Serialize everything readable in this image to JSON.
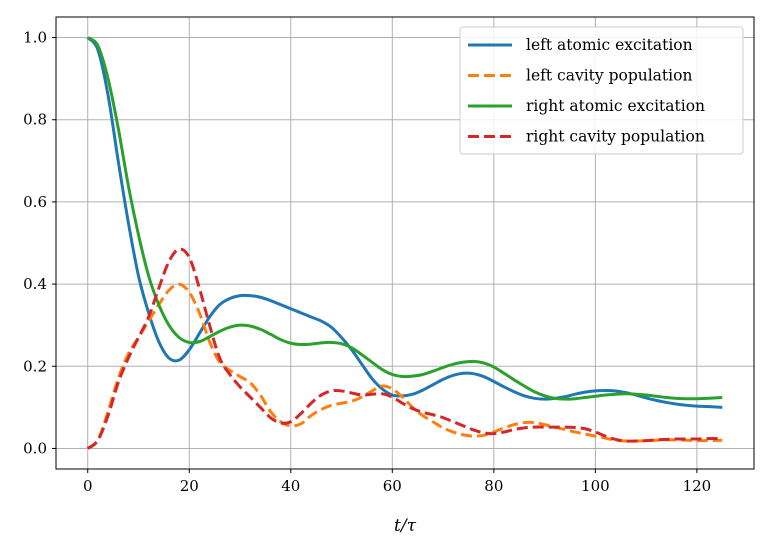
{
  "chart_data": {
    "type": "line",
    "xlabel": "t/τ",
    "ylabel": "",
    "xlim": [
      -6.25,
      131.25
    ],
    "ylim": [
      -0.05,
      1.05
    ],
    "xticks": [
      0,
      20,
      40,
      60,
      80,
      100,
      120
    ],
    "yticks": [
      0.0,
      0.2,
      0.4,
      0.6,
      0.8,
      1.0
    ],
    "xtick_labels": [
      "0",
      "20",
      "40",
      "60",
      "80",
      "100",
      "120"
    ],
    "ytick_labels": [
      "0.0",
      "0.2",
      "0.4",
      "0.6",
      "0.8",
      "1.0"
    ],
    "grid": true,
    "legend_position": "upper right",
    "series": [
      {
        "name": "left atomic excitation",
        "color": "#1f77b4",
        "dash": "solid",
        "x": [
          0,
          2,
          4,
          6,
          8,
          10,
          12,
          14,
          16,
          18,
          20,
          22,
          24,
          26,
          28,
          30,
          32,
          34,
          36,
          38,
          40,
          42,
          44,
          46,
          48,
          50,
          52,
          54,
          56,
          58,
          60,
          62,
          64,
          66,
          68,
          70,
          72,
          74,
          76,
          78,
          80,
          82,
          84,
          86,
          88,
          90,
          92,
          94,
          96,
          98,
          100,
          102,
          104,
          106,
          108,
          110,
          112,
          114,
          116,
          118,
          120,
          122,
          125
        ],
        "y": [
          1.0,
          0.97,
          0.86,
          0.7,
          0.55,
          0.42,
          0.33,
          0.26,
          0.22,
          0.215,
          0.24,
          0.28,
          0.32,
          0.35,
          0.365,
          0.372,
          0.372,
          0.368,
          0.36,
          0.35,
          0.34,
          0.33,
          0.32,
          0.31,
          0.295,
          0.27,
          0.24,
          0.205,
          0.17,
          0.145,
          0.13,
          0.128,
          0.132,
          0.142,
          0.155,
          0.168,
          0.178,
          0.183,
          0.182,
          0.175,
          0.163,
          0.15,
          0.138,
          0.128,
          0.122,
          0.12,
          0.122,
          0.126,
          0.132,
          0.137,
          0.14,
          0.141,
          0.14,
          0.136,
          0.13,
          0.123,
          0.117,
          0.112,
          0.108,
          0.105,
          0.103,
          0.102,
          0.1
        ]
      },
      {
        "name": "left cavity population",
        "color": "#ff7f0e",
        "dash": "dashed",
        "x": [
          0,
          2,
          4,
          6,
          8,
          10,
          12,
          14,
          16,
          18,
          20,
          22,
          24,
          26,
          28,
          30,
          32,
          34,
          36,
          38,
          40,
          42,
          44,
          46,
          48,
          50,
          52,
          54,
          56,
          58,
          60,
          62,
          64,
          66,
          68,
          70,
          72,
          74,
          76,
          78,
          80,
          82,
          84,
          86,
          88,
          90,
          92,
          94,
          96,
          98,
          100,
          102,
          104,
          106,
          108,
          110,
          112,
          114,
          116,
          118,
          120,
          122,
          125
        ],
        "y": [
          0.0,
          0.02,
          0.09,
          0.17,
          0.23,
          0.27,
          0.31,
          0.35,
          0.385,
          0.4,
          0.38,
          0.33,
          0.26,
          0.21,
          0.19,
          0.175,
          0.16,
          0.13,
          0.09,
          0.065,
          0.055,
          0.06,
          0.08,
          0.095,
          0.105,
          0.11,
          0.115,
          0.125,
          0.14,
          0.152,
          0.145,
          0.125,
          0.1,
          0.08,
          0.065,
          0.05,
          0.04,
          0.033,
          0.03,
          0.032,
          0.04,
          0.05,
          0.058,
          0.063,
          0.063,
          0.058,
          0.052,
          0.046,
          0.04,
          0.035,
          0.03,
          0.025,
          0.02,
          0.018,
          0.018,
          0.019,
          0.02,
          0.021,
          0.021,
          0.02,
          0.019,
          0.019,
          0.02
        ]
      },
      {
        "name": "right atomic excitation",
        "color": "#2ca02c",
        "dash": "solid",
        "x": [
          0,
          2,
          4,
          6,
          8,
          10,
          12,
          14,
          16,
          18,
          20,
          22,
          24,
          26,
          28,
          30,
          32,
          34,
          36,
          38,
          40,
          42,
          44,
          46,
          48,
          50,
          52,
          54,
          56,
          58,
          60,
          62,
          64,
          66,
          68,
          70,
          72,
          74,
          76,
          78,
          80,
          82,
          84,
          86,
          88,
          90,
          92,
          94,
          96,
          98,
          100,
          102,
          104,
          106,
          108,
          110,
          112,
          114,
          116,
          118,
          120,
          122,
          125
        ],
        "y": [
          1.0,
          0.98,
          0.9,
          0.78,
          0.64,
          0.52,
          0.42,
          0.35,
          0.3,
          0.27,
          0.258,
          0.26,
          0.272,
          0.285,
          0.295,
          0.3,
          0.298,
          0.29,
          0.278,
          0.265,
          0.256,
          0.253,
          0.254,
          0.257,
          0.258,
          0.255,
          0.245,
          0.228,
          0.21,
          0.192,
          0.18,
          0.175,
          0.176,
          0.18,
          0.188,
          0.197,
          0.205,
          0.21,
          0.212,
          0.208,
          0.198,
          0.183,
          0.167,
          0.152,
          0.138,
          0.128,
          0.122,
          0.12,
          0.121,
          0.124,
          0.127,
          0.13,
          0.132,
          0.133,
          0.132,
          0.13,
          0.127,
          0.124,
          0.122,
          0.121,
          0.121,
          0.122,
          0.124
        ]
      },
      {
        "name": "right cavity population",
        "color": "#d62728",
        "dash": "dashed",
        "x": [
          0,
          2,
          4,
          6,
          8,
          10,
          12,
          14,
          16,
          18,
          20,
          22,
          24,
          26,
          28,
          30,
          32,
          34,
          36,
          38,
          40,
          42,
          44,
          46,
          48,
          50,
          52,
          54,
          56,
          58,
          60,
          62,
          64,
          66,
          68,
          70,
          72,
          74,
          76,
          78,
          80,
          82,
          84,
          86,
          88,
          90,
          92,
          94,
          96,
          98,
          100,
          102,
          104,
          106,
          108,
          110,
          112,
          114,
          116,
          118,
          120,
          122,
          125
        ],
        "y": [
          0.0,
          0.02,
          0.08,
          0.16,
          0.22,
          0.27,
          0.32,
          0.39,
          0.455,
          0.485,
          0.465,
          0.39,
          0.3,
          0.22,
          0.18,
          0.15,
          0.125,
          0.1,
          0.075,
          0.062,
          0.065,
          0.085,
          0.11,
          0.13,
          0.14,
          0.14,
          0.135,
          0.13,
          0.132,
          0.133,
          0.125,
          0.11,
          0.097,
          0.088,
          0.082,
          0.075,
          0.065,
          0.055,
          0.045,
          0.038,
          0.036,
          0.04,
          0.046,
          0.05,
          0.052,
          0.052,
          0.052,
          0.052,
          0.051,
          0.048,
          0.04,
          0.03,
          0.022,
          0.018,
          0.018,
          0.019,
          0.021,
          0.022,
          0.023,
          0.023,
          0.023,
          0.024,
          0.024
        ]
      }
    ]
  }
}
